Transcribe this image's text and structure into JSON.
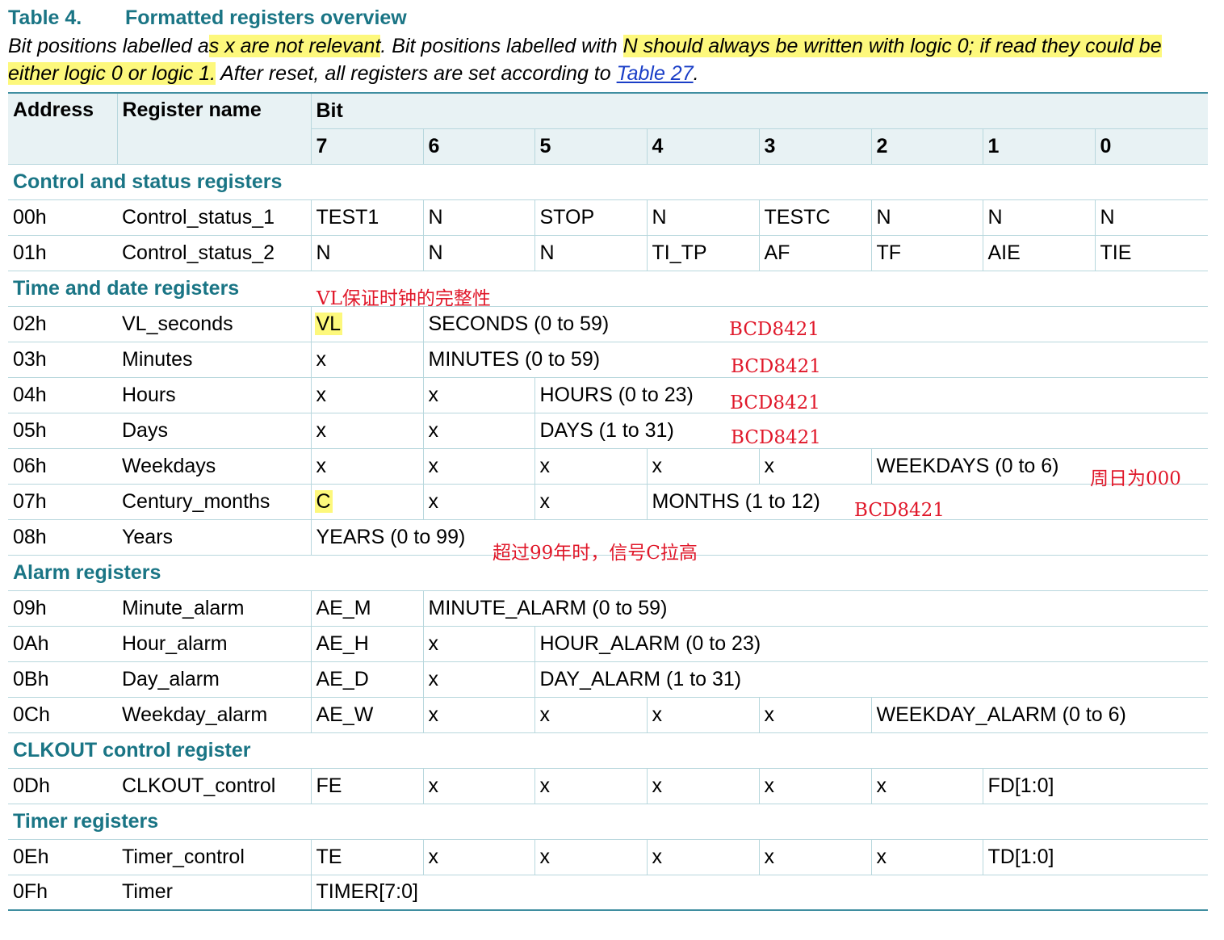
{
  "title": {
    "number": "Table 4.",
    "text": "Formatted registers overview"
  },
  "intro": {
    "p1": "Bit positions labelled a",
    "h1": "s x are not relevant",
    "p2": ". Bit positions labelled with ",
    "h2": "N should always be written with logic 0; if read they could be either logic 0 or logic 1.",
    "p3": " After reset, all registers are set according to ",
    "link": "Table 27",
    "p4": "."
  },
  "header": {
    "address": "Address",
    "register_name": "Register name",
    "bit": "Bit",
    "bits": [
      "7",
      "6",
      "5",
      "4",
      "3",
      "2",
      "1",
      "0"
    ]
  },
  "sections": {
    "control": "Control and status registers",
    "time": "Time and date registers",
    "alarm": "Alarm registers",
    "clkout": "CLKOUT control register",
    "timer": "Timer registers"
  },
  "rows": {
    "r00": {
      "addr": "00h",
      "name": "Control_status_1",
      "cells": [
        "TEST1",
        "N",
        "STOP",
        "N",
        "TESTC",
        "N",
        "N",
        "N"
      ]
    },
    "r01": {
      "addr": "01h",
      "name": "Control_status_2",
      "cells": [
        "N",
        "N",
        "N",
        "TI_TP",
        "AF",
        "TF",
        "AIE",
        "TIE"
      ]
    },
    "r02": {
      "addr": "02h",
      "name": "VL_seconds",
      "cells": [
        "VL",
        "SECONDS (0 to 59)"
      ]
    },
    "r03": {
      "addr": "03h",
      "name": "Minutes",
      "cells": [
        "x",
        "MINUTES (0 to 59)"
      ]
    },
    "r04": {
      "addr": "04h",
      "name": "Hours",
      "cells": [
        "x",
        "x",
        "HOURS (0 to 23)"
      ]
    },
    "r05": {
      "addr": "05h",
      "name": "Days",
      "cells": [
        "x",
        "x",
        "DAYS (1 to 31)"
      ]
    },
    "r06": {
      "addr": "06h",
      "name": "Weekdays",
      "cells": [
        "x",
        "x",
        "x",
        "x",
        "x",
        "WEEKDAYS (0 to 6)"
      ]
    },
    "r07": {
      "addr": "07h",
      "name": "Century_months",
      "cells": [
        "C",
        "x",
        "x",
        "MONTHS (1 to 12)"
      ]
    },
    "r08": {
      "addr": "08h",
      "name": "Years",
      "cells": [
        "YEARS (0 to 99)"
      ]
    },
    "r09": {
      "addr": "09h",
      "name": "Minute_alarm",
      "cells": [
        "AE_M",
        "MINUTE_ALARM (0 to 59)"
      ]
    },
    "r0a": {
      "addr": "0Ah",
      "name": "Hour_alarm",
      "cells": [
        "AE_H",
        "x",
        "HOUR_ALARM (0 to 23)"
      ]
    },
    "r0b": {
      "addr": "0Bh",
      "name": "Day_alarm",
      "cells": [
        "AE_D",
        "x",
        "DAY_ALARM (1 to 31)"
      ]
    },
    "r0c": {
      "addr": "0Ch",
      "name": "Weekday_alarm",
      "cells": [
        "AE_W",
        "x",
        "x",
        "x",
        "x",
        "WEEKDAY_ALARM (0 to 6)"
      ]
    },
    "r0d": {
      "addr": "0Dh",
      "name": "CLKOUT_control",
      "cells": [
        "FE",
        "x",
        "x",
        "x",
        "x",
        "x",
        "FD[1:0]"
      ]
    },
    "r0e": {
      "addr": "0Eh",
      "name": "Timer_control",
      "cells": [
        "TE",
        "x",
        "x",
        "x",
        "x",
        "x",
        "TD[1:0]"
      ]
    },
    "r0f": {
      "addr": "0Fh",
      "name": "Timer",
      "cells": [
        "TIMER[7:0]"
      ]
    }
  },
  "annotations": {
    "vl_note": "VL保证时钟的完整性",
    "bcd_seconds": "BCD8421",
    "bcd_minutes": "BCD8421",
    "bcd_hours": "BCD8421",
    "bcd_days": "BCD8421",
    "weekday_note": "周日为000",
    "bcd_months": "BCD8421",
    "years_note": "超过99年时，信号C拉高"
  },
  "colors": {
    "heading_teal": "#1a7585",
    "header_bg": "#e8f2f4",
    "highlight_yellow": "#fdf87c",
    "annotation_red": "#e0182a",
    "link_blue": "#1a3ec7"
  }
}
